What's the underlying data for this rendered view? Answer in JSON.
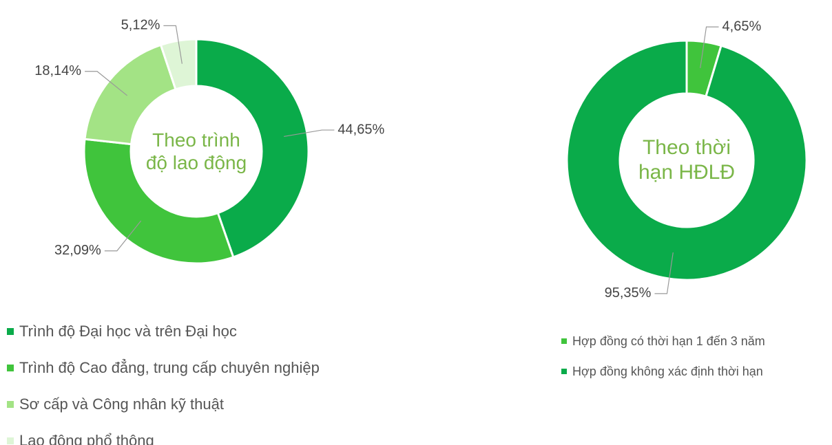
{
  "chart_data": [
    {
      "type": "donut",
      "title": "Theo trình độ lao động",
      "categories": [
        "Trình độ Đại học và trên Đại học",
        "Trình độ Cao đẳng, trung cấp chuyên nghiệp",
        "Sơ cấp và Công nhân kỹ thuật",
        "Lao động phổ thông"
      ],
      "values": [
        44.65,
        32.09,
        18.14,
        5.12
      ],
      "value_labels": [
        "44,65%",
        "32,09%",
        "18,14%",
        "5,12%"
      ],
      "colors": [
        "#0aab4a",
        "#40c43c",
        "#a3e385",
        "#def5d6"
      ]
    },
    {
      "type": "donut",
      "title": "Theo thời hạn HĐLĐ",
      "categories": [
        "Hợp đồng có thời hạn 1 đến 3 năm",
        "Hợp đồng không xác định thời hạn"
      ],
      "values": [
        4.65,
        95.35
      ],
      "value_labels": [
        "4,65%",
        "95,35%"
      ],
      "colors": [
        "#40c43c",
        "#0aab4a"
      ]
    }
  ]
}
